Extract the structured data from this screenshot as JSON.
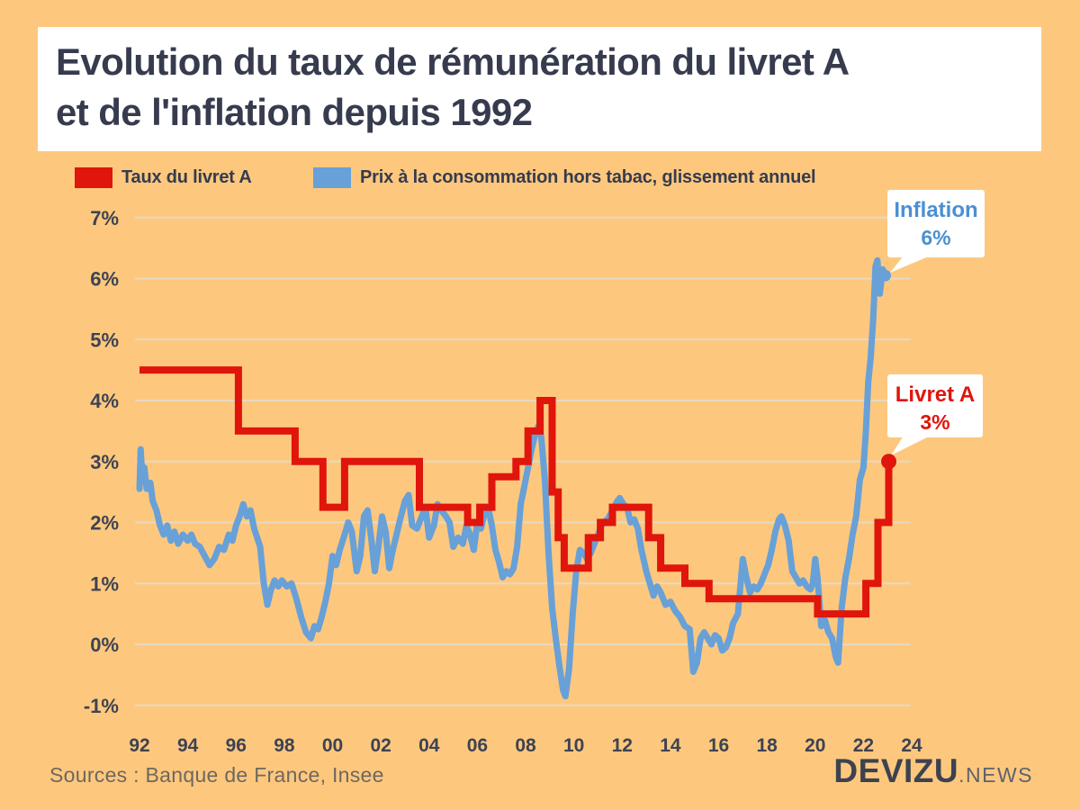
{
  "header": {
    "title_line1": "Evolution du taux de rémunération du livret A",
    "title_line2": "et de l'inflation depuis 1992"
  },
  "legend": [
    {
      "label": "Taux du livret A",
      "color": "#e0150b"
    },
    {
      "label": "Prix à la consommation hors tabac, glissement annuel",
      "color": "#68a0d8"
    }
  ],
  "callouts": {
    "inflation": {
      "title": "Inflation",
      "value": "6%"
    },
    "livret": {
      "title": "Livret A",
      "value": "3%"
    }
  },
  "footer": {
    "sources": "Sources : Banque de France, Insee",
    "logo_main": "DEVIZU",
    "logo_suffix": ".NEWS"
  },
  "colors": {
    "background": "#fdc87e",
    "livret_red": "#e0150b",
    "inflation_blue": "#68a0d8",
    "grid": "#e4dccb",
    "axis_text": "#3e4252"
  },
  "chart_data": {
    "type": "line",
    "title": "Evolution du taux de rémunération du livret A et de l'inflation depuis 1992",
    "x_range": [
      1992,
      2024
    ],
    "y_range": [
      -1,
      7
    ],
    "grid": true,
    "legend_position": "top",
    "y_ticks": [
      {
        "label": "7%",
        "value": 7
      },
      {
        "label": "6%",
        "value": 6
      },
      {
        "label": "5%",
        "value": 5
      },
      {
        "label": "4%",
        "value": 4
      },
      {
        "label": "3%",
        "value": 3
      },
      {
        "label": "2%",
        "value": 2
      },
      {
        "label": "1%",
        "value": 1
      },
      {
        "label": "0%",
        "value": 0
      },
      {
        "label": "-1%",
        "value": -1
      }
    ],
    "x_ticks": [
      {
        "label": "92",
        "year": 1992
      },
      {
        "label": "94",
        "year": 1994
      },
      {
        "label": "96",
        "year": 1996
      },
      {
        "label": "98",
        "year": 1998
      },
      {
        "label": "00",
        "year": 2000
      },
      {
        "label": "02",
        "year": 2002
      },
      {
        "label": "04",
        "year": 2004
      },
      {
        "label": "06",
        "year": 2006
      },
      {
        "label": "08",
        "year": 2008
      },
      {
        "label": "10",
        "year": 2010
      },
      {
        "label": "12",
        "year": 2012
      },
      {
        "label": "14",
        "year": 2014
      },
      {
        "label": "16",
        "year": 2016
      },
      {
        "label": "18",
        "year": 2018
      },
      {
        "label": "20",
        "year": 2020
      },
      {
        "label": "22",
        "year": 2022
      },
      {
        "label": "24",
        "year": 2024
      }
    ],
    "series": [
      {
        "name": "Taux du livret A",
        "type": "step",
        "color": "#e0150b",
        "segments": [
          [
            1992.0,
            1996.1,
            4.5
          ],
          [
            1996.1,
            1998.45,
            3.5
          ],
          [
            1998.45,
            1999.6,
            3.0
          ],
          [
            1999.6,
            2000.5,
            2.25
          ],
          [
            2000.5,
            2003.6,
            3.0
          ],
          [
            2003.6,
            2005.6,
            2.25
          ],
          [
            2005.6,
            2006.1,
            2.0
          ],
          [
            2006.1,
            2006.6,
            2.25
          ],
          [
            2006.6,
            2007.6,
            2.75
          ],
          [
            2007.6,
            2008.1,
            3.0
          ],
          [
            2008.1,
            2008.6,
            3.5
          ],
          [
            2008.6,
            2009.1,
            4.0
          ],
          [
            2009.1,
            2009.35,
            2.5
          ],
          [
            2009.35,
            2009.6,
            1.75
          ],
          [
            2009.6,
            2010.6,
            1.25
          ],
          [
            2010.6,
            2011.1,
            1.75
          ],
          [
            2011.1,
            2011.6,
            2.0
          ],
          [
            2011.6,
            2013.1,
            2.25
          ],
          [
            2013.1,
            2013.6,
            1.75
          ],
          [
            2013.6,
            2014.6,
            1.25
          ],
          [
            2014.6,
            2015.6,
            1.0
          ],
          [
            2015.6,
            2020.1,
            0.75
          ],
          [
            2020.1,
            2022.1,
            0.5
          ],
          [
            2022.1,
            2022.6,
            1.0
          ],
          [
            2022.6,
            2023.05,
            2.0
          ],
          [
            2023.05,
            2023.05,
            3.0
          ]
        ],
        "end_point": [
          2023.05,
          3.0
        ]
      },
      {
        "name": "Prix à la consommation hors tabac, glissement annuel",
        "type": "line",
        "color": "#68a0d8",
        "points": [
          [
            1992.0,
            2.55
          ],
          [
            1992.05,
            3.2
          ],
          [
            1992.12,
            2.7
          ],
          [
            1992.2,
            2.9
          ],
          [
            1992.3,
            2.55
          ],
          [
            1992.45,
            2.65
          ],
          [
            1992.55,
            2.35
          ],
          [
            1992.7,
            2.2
          ],
          [
            1992.85,
            1.95
          ],
          [
            1993.0,
            1.8
          ],
          [
            1993.15,
            1.95
          ],
          [
            1993.3,
            1.7
          ],
          [
            1993.45,
            1.85
          ],
          [
            1993.6,
            1.65
          ],
          [
            1993.8,
            1.8
          ],
          [
            1994.0,
            1.7
          ],
          [
            1994.15,
            1.8
          ],
          [
            1994.3,
            1.65
          ],
          [
            1994.5,
            1.6
          ],
          [
            1994.7,
            1.45
          ],
          [
            1994.9,
            1.3
          ],
          [
            1995.1,
            1.4
          ],
          [
            1995.3,
            1.6
          ],
          [
            1995.5,
            1.55
          ],
          [
            1995.7,
            1.8
          ],
          [
            1995.85,
            1.7
          ],
          [
            1996.0,
            1.95
          ],
          [
            1996.15,
            2.1
          ],
          [
            1996.3,
            2.3
          ],
          [
            1996.45,
            2.1
          ],
          [
            1996.6,
            2.2
          ],
          [
            1996.75,
            1.9
          ],
          [
            1997.0,
            1.6
          ],
          [
            1997.15,
            1.0
          ],
          [
            1997.3,
            0.65
          ],
          [
            1997.45,
            0.9
          ],
          [
            1997.6,
            1.05
          ],
          [
            1997.75,
            0.95
          ],
          [
            1997.9,
            1.05
          ],
          [
            1998.1,
            0.95
          ],
          [
            1998.3,
            1.0
          ],
          [
            1998.5,
            0.75
          ],
          [
            1998.7,
            0.45
          ],
          [
            1998.9,
            0.2
          ],
          [
            1999.1,
            0.1
          ],
          [
            1999.25,
            0.3
          ],
          [
            1999.4,
            0.25
          ],
          [
            1999.55,
            0.45
          ],
          [
            1999.7,
            0.7
          ],
          [
            1999.85,
            1.0
          ],
          [
            2000.0,
            1.45
          ],
          [
            2000.15,
            1.3
          ],
          [
            2000.3,
            1.55
          ],
          [
            2000.5,
            1.8
          ],
          [
            2000.65,
            2.0
          ],
          [
            2000.8,
            1.85
          ],
          [
            2001.0,
            1.2
          ],
          [
            2001.15,
            1.45
          ],
          [
            2001.3,
            2.1
          ],
          [
            2001.45,
            2.2
          ],
          [
            2001.6,
            1.75
          ],
          [
            2001.75,
            1.2
          ],
          [
            2001.9,
            1.6
          ],
          [
            2002.05,
            2.1
          ],
          [
            2002.2,
            1.85
          ],
          [
            2002.35,
            1.25
          ],
          [
            2002.5,
            1.55
          ],
          [
            2002.65,
            1.8
          ],
          [
            2002.8,
            2.05
          ],
          [
            2003.0,
            2.35
          ],
          [
            2003.15,
            2.45
          ],
          [
            2003.3,
            1.95
          ],
          [
            2003.5,
            1.9
          ],
          [
            2003.7,
            2.1
          ],
          [
            2003.85,
            2.25
          ],
          [
            2004.0,
            1.75
          ],
          [
            2004.2,
            1.95
          ],
          [
            2004.35,
            2.3
          ],
          [
            2004.5,
            2.2
          ],
          [
            2004.7,
            2.1
          ],
          [
            2004.85,
            2.0
          ],
          [
            2005.0,
            1.6
          ],
          [
            2005.2,
            1.75
          ],
          [
            2005.4,
            1.65
          ],
          [
            2005.55,
            1.95
          ],
          [
            2005.7,
            1.8
          ],
          [
            2005.85,
            1.55
          ],
          [
            2006.0,
            2.0
          ],
          [
            2006.15,
            1.9
          ],
          [
            2006.3,
            2.15
          ],
          [
            2006.45,
            2.25
          ],
          [
            2006.6,
            1.95
          ],
          [
            2006.75,
            1.55
          ],
          [
            2006.9,
            1.35
          ],
          [
            2007.05,
            1.1
          ],
          [
            2007.2,
            1.2
          ],
          [
            2007.35,
            1.15
          ],
          [
            2007.5,
            1.25
          ],
          [
            2007.65,
            1.6
          ],
          [
            2007.8,
            2.3
          ],
          [
            2007.95,
            2.6
          ],
          [
            2008.1,
            2.9
          ],
          [
            2008.25,
            3.2
          ],
          [
            2008.4,
            3.45
          ],
          [
            2008.55,
            3.6
          ],
          [
            2008.65,
            3.4
          ],
          [
            2008.8,
            2.7
          ],
          [
            2008.95,
            1.5
          ],
          [
            2009.1,
            0.6
          ],
          [
            2009.25,
            0.1
          ],
          [
            2009.4,
            -0.35
          ],
          [
            2009.55,
            -0.75
          ],
          [
            2009.65,
            -0.85
          ],
          [
            2009.8,
            -0.4
          ],
          [
            2009.95,
            0.5
          ],
          [
            2010.1,
            1.2
          ],
          [
            2010.25,
            1.55
          ],
          [
            2010.4,
            1.5
          ],
          [
            2010.55,
            1.4
          ],
          [
            2010.7,
            1.5
          ],
          [
            2010.85,
            1.65
          ],
          [
            2011.0,
            1.8
          ],
          [
            2011.2,
            2.0
          ],
          [
            2011.4,
            2.05
          ],
          [
            2011.6,
            2.2
          ],
          [
            2011.8,
            2.35
          ],
          [
            2011.9,
            2.4
          ],
          [
            2012.05,
            2.3
          ],
          [
            2012.2,
            2.25
          ],
          [
            2012.35,
            2.0
          ],
          [
            2012.5,
            2.05
          ],
          [
            2012.65,
            1.9
          ],
          [
            2012.8,
            1.55
          ],
          [
            2013.0,
            1.2
          ],
          [
            2013.15,
            1.0
          ],
          [
            2013.3,
            0.8
          ],
          [
            2013.45,
            0.95
          ],
          [
            2013.6,
            0.85
          ],
          [
            2013.8,
            0.65
          ],
          [
            2014.0,
            0.7
          ],
          [
            2014.2,
            0.55
          ],
          [
            2014.4,
            0.45
          ],
          [
            2014.6,
            0.3
          ],
          [
            2014.8,
            0.25
          ],
          [
            2014.95,
            -0.45
          ],
          [
            2015.1,
            -0.3
          ],
          [
            2015.25,
            0.1
          ],
          [
            2015.4,
            0.2
          ],
          [
            2015.55,
            0.1
          ],
          [
            2015.7,
            0.0
          ],
          [
            2015.85,
            0.15
          ],
          [
            2016.0,
            0.1
          ],
          [
            2016.15,
            -0.1
          ],
          [
            2016.3,
            -0.05
          ],
          [
            2016.45,
            0.1
          ],
          [
            2016.6,
            0.35
          ],
          [
            2016.8,
            0.5
          ],
          [
            2017.0,
            1.4
          ],
          [
            2017.15,
            1.1
          ],
          [
            2017.3,
            0.85
          ],
          [
            2017.45,
            0.95
          ],
          [
            2017.6,
            0.9
          ],
          [
            2017.75,
            1.0
          ],
          [
            2017.9,
            1.15
          ],
          [
            2018.05,
            1.3
          ],
          [
            2018.2,
            1.55
          ],
          [
            2018.35,
            1.85
          ],
          [
            2018.5,
            2.05
          ],
          [
            2018.6,
            2.1
          ],
          [
            2018.75,
            1.95
          ],
          [
            2018.9,
            1.7
          ],
          [
            2019.05,
            1.2
          ],
          [
            2019.2,
            1.1
          ],
          [
            2019.35,
            1.0
          ],
          [
            2019.5,
            1.05
          ],
          [
            2019.65,
            0.95
          ],
          [
            2019.8,
            0.9
          ],
          [
            2019.9,
            1.0
          ],
          [
            2020.0,
            1.4
          ],
          [
            2020.1,
            1.1
          ],
          [
            2020.25,
            0.3
          ],
          [
            2020.4,
            0.4
          ],
          [
            2020.55,
            0.2
          ],
          [
            2020.7,
            0.1
          ],
          [
            2020.85,
            -0.2
          ],
          [
            2020.95,
            -0.3
          ],
          [
            2021.1,
            0.6
          ],
          [
            2021.25,
            1.1
          ],
          [
            2021.4,
            1.4
          ],
          [
            2021.55,
            1.8
          ],
          [
            2021.7,
            2.1
          ],
          [
            2021.85,
            2.7
          ],
          [
            2022.0,
            2.9
          ],
          [
            2022.1,
            3.5
          ],
          [
            2022.2,
            4.3
          ],
          [
            2022.3,
            4.7
          ],
          [
            2022.4,
            5.3
          ],
          [
            2022.5,
            6.2
          ],
          [
            2022.58,
            6.3
          ],
          [
            2022.68,
            5.75
          ],
          [
            2022.8,
            6.15
          ],
          [
            2022.9,
            6.05
          ]
        ],
        "end_point": [
          2022.9,
          6.05
        ]
      }
    ]
  }
}
